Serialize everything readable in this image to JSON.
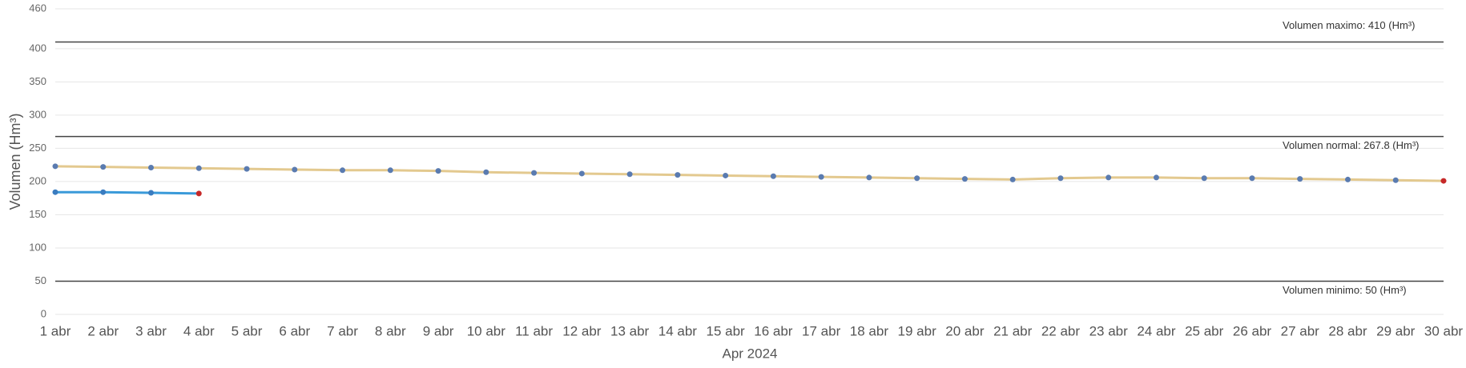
{
  "chart_data": {
    "type": "line",
    "categories": [
      "1 abr",
      "2 abr",
      "3 abr",
      "4 abr",
      "5 abr",
      "6 abr",
      "7 abr",
      "8 abr",
      "9 abr",
      "10 abr",
      "11 abr",
      "12 abr",
      "13 abr",
      "14 abr",
      "15 abr",
      "16 abr",
      "17 abr",
      "18 abr",
      "19 abr",
      "20 abr",
      "21 abr",
      "22 abr",
      "23 abr",
      "24 abr",
      "25 abr",
      "26 abr",
      "27 abr",
      "28 abr",
      "29 abr",
      "30 abr"
    ],
    "x_label": "Apr 2024",
    "y_label": "Volumen (Hm³)",
    "ylim": [
      0,
      460
    ],
    "yticks": [
      0,
      50,
      100,
      150,
      200,
      250,
      300,
      350,
      400,
      460
    ],
    "grid": true,
    "last_marker_color": "#c62828",
    "series": [
      {
        "color": "#e3c98f",
        "marker_color": "#5a7bb0",
        "values": [
          223,
          222,
          221,
          220,
          219,
          218,
          217,
          217,
          216,
          214,
          213,
          212,
          211,
          210,
          209,
          208,
          207,
          206,
          205,
          204,
          203,
          205,
          206,
          206,
          205,
          205,
          204,
          203,
          202,
          201
        ]
      },
      {
        "color": "#3a9ad9",
        "marker_color": "#3a7cc0",
        "values": [
          184,
          184,
          183,
          182,
          null,
          null,
          null,
          null,
          null,
          null,
          null,
          null,
          null,
          null,
          null,
          null,
          null,
          null,
          null,
          null,
          null,
          null,
          null,
          null,
          null,
          null,
          null,
          null,
          null,
          null
        ]
      }
    ],
    "reference_lines": [
      {
        "value": 410,
        "label": "Volumen maximo: 410 (Hm³)",
        "label_position": "above"
      },
      {
        "value": 267.8,
        "label": "Volumen normal: 267.8 (Hm³)",
        "label_position": "below"
      },
      {
        "value": 50,
        "label": "Volumen minimo: 50 (Hm³)",
        "label_position": "below"
      }
    ]
  }
}
